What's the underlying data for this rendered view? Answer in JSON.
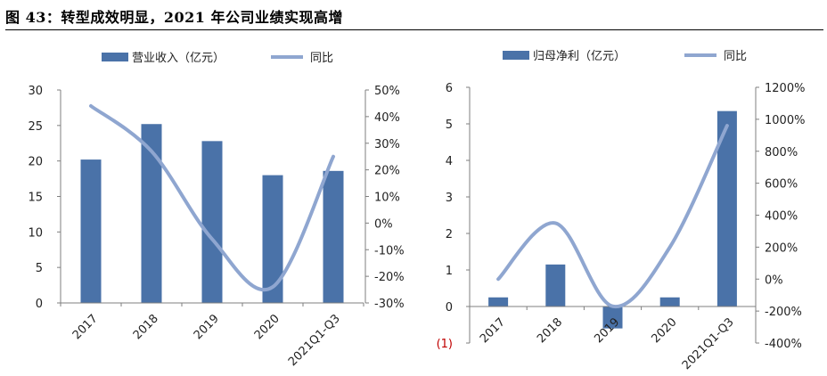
{
  "figure_title": "图 43：转型成效明显，2021 年公司业绩实现高增",
  "colors": {
    "bar": "#4A72A8",
    "line": "#8FA6D0",
    "axis": "#7f7f7f",
    "neg_label": "#C00000"
  },
  "chart_data": [
    {
      "type": "bar",
      "categories": [
        "2017",
        "2018",
        "2019",
        "2020",
        "2021Q1-Q3"
      ],
      "series": [
        {
          "name": "营业收入（亿元）",
          "axis": "left",
          "kind": "bar",
          "values": [
            20.2,
            25.2,
            22.8,
            18.0,
            18.6
          ]
        },
        {
          "name": "同比",
          "axis": "right",
          "kind": "line",
          "values": [
            44,
            27,
            -6,
            -24,
            25
          ]
        }
      ],
      "left_axis": {
        "min": 0,
        "max": 30,
        "step": 5,
        "tick_labels": [
          "0",
          "5",
          "10",
          "15",
          "20",
          "25",
          "30"
        ]
      },
      "right_axis": {
        "min": -30,
        "max": 50,
        "step": 10,
        "tick_labels": [
          "-30%",
          "-20%",
          "-10%",
          "0%",
          "10%",
          "20%",
          "30%",
          "40%",
          "50%"
        ]
      },
      "legend_position": "top",
      "grid": false
    },
    {
      "type": "bar",
      "categories": [
        "2017",
        "2018",
        "2019",
        "2020",
        "2021Q1-Q3"
      ],
      "series": [
        {
          "name": "归母净利（亿元）",
          "axis": "left",
          "kind": "bar",
          "values": [
            0.25,
            1.15,
            -0.6,
            0.25,
            5.35
          ]
        },
        {
          "name": "同比",
          "axis": "right",
          "kind": "line",
          "values": [
            0,
            350,
            -170,
            200,
            960
          ]
        }
      ],
      "left_axis": {
        "min": -1,
        "max": 6,
        "step": 1,
        "tick_labels": [
          "(1)",
          "0",
          "1",
          "2",
          "3",
          "4",
          "5",
          "6"
        ]
      },
      "right_axis": {
        "min": -400,
        "max": 1200,
        "step": 200,
        "tick_labels": [
          "-400%",
          "-200%",
          "0%",
          "200%",
          "400%",
          "600%",
          "800%",
          "1000%",
          "1200%"
        ]
      },
      "legend_position": "top",
      "grid": false
    }
  ]
}
